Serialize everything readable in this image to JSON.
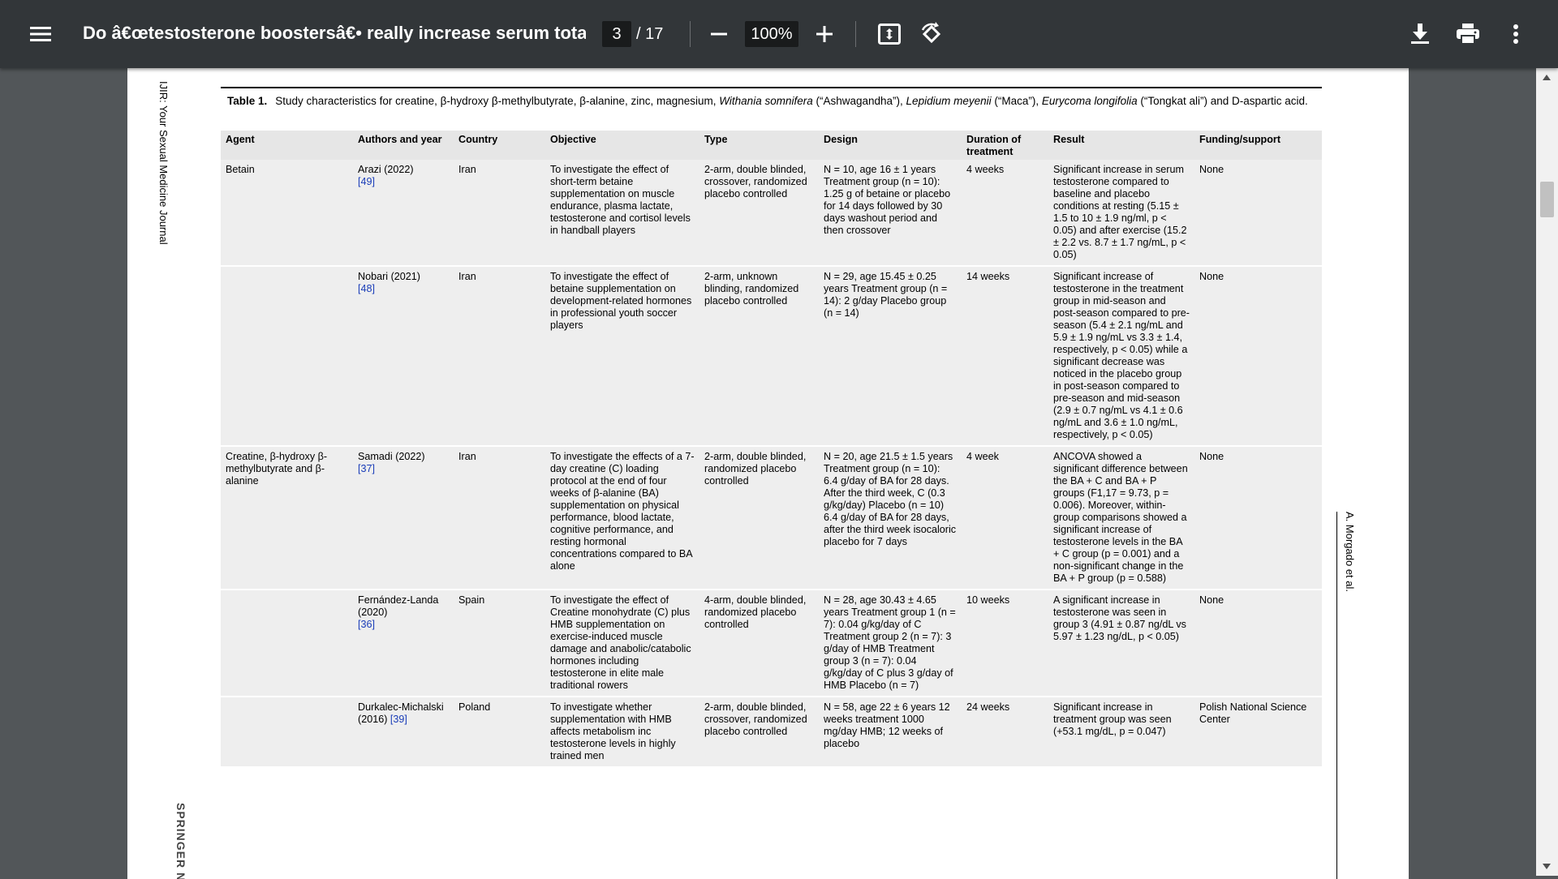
{
  "toolbar": {
    "title": "Do â€œtestosterone boostersâ€• really increase serum total te...",
    "current_page": "3",
    "page_total": "/ 17",
    "zoom": "100%",
    "icons": [
      "menu-icon",
      "minus-icon",
      "plus-icon",
      "fit-page-icon",
      "rotate-icon",
      "download-icon",
      "print-icon",
      "more-vertical-icon"
    ]
  },
  "page": {
    "journal": "IJIR: Your Sexual Medicine Journal",
    "publisher": "SPRINGER N",
    "author_running": "A. Morgado et al.",
    "caption_label": "Table 1.",
    "caption_parts": [
      "Study characteristics for creatine, β-hydroxy β-methylbutyrate, β-alanine, zinc, magnesium, ",
      "Withania somnifera",
      " (“Ashwagandha”), ",
      "Lepidium meyenii",
      " (“Maca”), ",
      "Eurycoma longifolia",
      " (“Tongkat ali”) and D-aspartic acid."
    ],
    "table": {
      "headers": [
        "Agent",
        "Authors and year",
        "Country",
        "Objective",
        "Type",
        "Design",
        "Duration of treatment",
        "Result",
        "Funding/support"
      ],
      "rows": [
        {
          "agent": "Betain",
          "author": "Arazi (2022)",
          "ref": "[49]",
          "country": "Iran",
          "objective": "To investigate the effect of short-term betaine supplementation on muscle endurance, plasma lactate, testosterone and cortisol levels in handball players",
          "type": "2-arm, double blinded, crossover, randomized placebo controlled",
          "design": "N = 10, age 16 ± 1 years Treatment group (n = 10): 1.25 g of betaine or placebo for 14 days followed by 30 days washout period and then crossover",
          "duration": "4 weeks",
          "result": "Significant increase in serum testosterone compared to baseline and placebo conditions at resting (5.15 ± 1.5 to 10 ± 1.9 ng/ml, p < 0.05) and after exercise (15.2 ± 2.2 vs. 8.7 ± 1.7 ng/mL, p < 0.05)",
          "funding": "None"
        },
        {
          "agent": "",
          "author": "Nobari (2021)",
          "ref": "[48]",
          "country": "Iran",
          "objective": "To investigate the effect of betaine supplementation on development-related hormones in professional youth soccer players",
          "type": "2-arm, unknown blinding, randomized placebo controlled",
          "design": "N = 29, age 15.45 ± 0.25 years Treatment group (n = 14): 2 g/day Placebo group (n = 14)",
          "duration": "14 weeks",
          "result": "Significant increase of testosterone in the treatment group in mid-season and post-season compared to pre-season (5.4 ± 2.1 ng/mL and 5.9 ± 1.9 ng/mL vs 3.3 ± 1.4, respectively, p < 0.05) while a significant decrease was noticed in the placebo group in post-season compared to pre-season and mid-season (2.9 ± 0.7 ng/mL vs 4.1 ± 0.6 ng/mL and 3.6 ± 1.0 ng/mL, respectively, p < 0.05)",
          "funding": "None"
        },
        {
          "agent": "Creatine, β-hydroxy β-methylbutyrate and β-alanine",
          "author": "Samadi (2022)",
          "ref": "[37]",
          "country": "Iran",
          "objective": "To investigate the effects of a 7-day creatine (C) loading protocol at the end of four weeks of β-alanine (BA) supplementation on physical performance, blood lactate, cognitive performance, and resting hormonal concentrations compared to BA alone",
          "type": "2-arm, double blinded, randomized placebo controlled",
          "design": "N = 20, age 21.5 ± 1.5 years Treatment group (n = 10): 6.4 g/day of BA for 28 days. After the third week, C (0.3 g/kg/day) Placebo (n = 10) 6.4 g/day of BA for 28 days, after the third week isocaloric placebo for 7 days",
          "duration": "4 week",
          "result": "ANCOVA showed a significant difference between the BA + C and BA + P groups (F1,17 = 9.73, p = 0.006). Moreover, within-group comparisons showed a significant increase of testosterone levels in the BA + C group (p = 0.001) and a non-significant change in the BA + P group (p = 0.588)",
          "funding": "None"
        },
        {
          "agent": "",
          "author": "Fernández-Landa (2020)",
          "ref": "[36]",
          "country": "Spain",
          "objective": "To investigate the effect of Creatine monohydrate (C) plus HMB supplementation on exercise-induced muscle damage and anabolic/catabolic hormones including testosterone in elite male traditional rowers",
          "type": "4-arm, double blinded, randomized placebo controlled",
          "design": "N = 28, age 30.43 ± 4.65 years Treatment group 1 (n = 7): 0.04 g/kg/day of C Treatment group 2 (n = 7): 3 g/day of HMB Treatment group 3 (n = 7): 0.04 g/kg/day of C plus 3 g/day of HMB Placebo (n = 7)",
          "duration": "10 weeks",
          "result": "A significant increase in testosterone was seen in group 3 (4.91 ± 0.87 ng/dL vs 5.97 ± 1.23 ng/dL, p < 0.05)",
          "funding": "None"
        },
        {
          "agent": "",
          "author": "Durkalec-Michalski (2016)",
          "ref": "[39]",
          "country": "Poland",
          "objective": "To investigate whether supplementation with HMB affects metabolism inc testosterone levels in highly trained men",
          "type": "2-arm, double blinded, crossover, randomized placebo controlled",
          "design": "N = 58, age 22 ± 6 years 12 weeks treatment 1000 mg/day HMB; 12 weeks of placebo",
          "duration": "24 weeks",
          "result": "Significant increase in treatment group was seen (+53.1 mg/dL, p = 0.047)",
          "funding": "Polish National Science Center"
        }
      ]
    }
  }
}
